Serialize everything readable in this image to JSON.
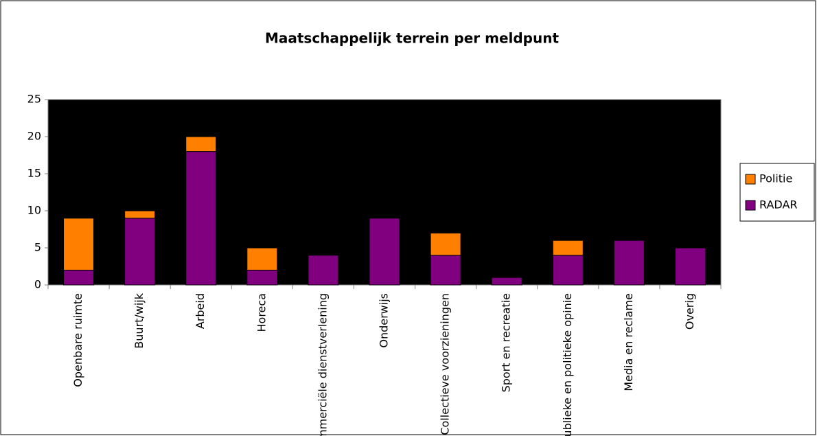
{
  "chart_data": {
    "type": "stacked-bar",
    "title": "Maatschappelijk terrein per meldpunt",
    "categories": [
      "Openbare ruimte",
      "Buurt/wijk",
      "Arbeid",
      "Horeca",
      "Commerciële dienstverlening",
      "Onderwijs",
      "Collectieve voorzieningen",
      "Sport en recreatie",
      "Publieke en politieke opinie",
      "Media en reclame",
      "Overig"
    ],
    "series": [
      {
        "name": "RADAR",
        "color": "#800080",
        "values": [
          2,
          9,
          18,
          2,
          4,
          9,
          4,
          1,
          4,
          6,
          5
        ]
      },
      {
        "name": "Politie",
        "color": "#ff8000",
        "values": [
          7,
          1,
          2,
          3,
          0,
          0,
          3,
          0,
          2,
          0,
          0
        ]
      }
    ],
    "ylim": [
      0,
      25
    ],
    "yticks": [
      0,
      5,
      10,
      15,
      20,
      25
    ],
    "grid": false,
    "legend": "right"
  }
}
